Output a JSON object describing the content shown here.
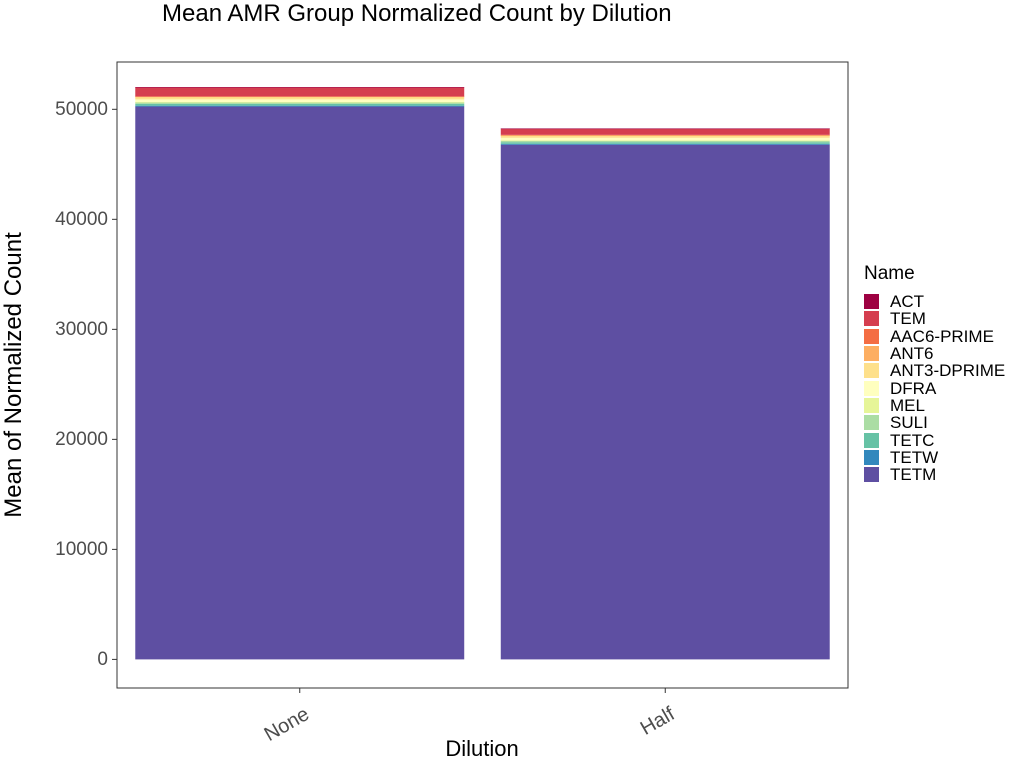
{
  "chart_data": {
    "type": "bar",
    "stacked": true,
    "title": "Mean AMR Group Normalized Count by Dilution",
    "xlabel": "Dilution",
    "ylabel": "Mean of Normalized Count",
    "categories": [
      "None",
      "Half"
    ],
    "ylim": [
      -2600,
      54300
    ],
    "yticks": [
      0,
      10000,
      20000,
      30000,
      40000,
      50000
    ],
    "grid": false,
    "legend": {
      "title": "Name",
      "placement": "right"
    },
    "series": [
      {
        "name": "ACT",
        "color": "#9E0142",
        "values": [
          20,
          20
        ]
      },
      {
        "name": "TEM",
        "color": "#D53E4F",
        "values": [
          820,
          560
        ]
      },
      {
        "name": "AAC6-PRIME",
        "color": "#F46D43",
        "values": [
          20,
          20
        ]
      },
      {
        "name": "ANT6",
        "color": "#FDAE61",
        "values": [
          20,
          20
        ]
      },
      {
        "name": "ANT3-DPRIME",
        "color": "#FEE08B",
        "values": [
          240,
          230
        ]
      },
      {
        "name": "DFRA",
        "color": "#FFFFBF",
        "values": [
          240,
          230
        ]
      },
      {
        "name": "MEL",
        "color": "#E6F598",
        "values": [
          20,
          20
        ]
      },
      {
        "name": "SULI",
        "color": "#ABDDA4",
        "values": [
          150,
          150
        ]
      },
      {
        "name": "TETC",
        "color": "#66C2A5",
        "values": [
          160,
          150
        ]
      },
      {
        "name": "TETW",
        "color": "#3288BD",
        "values": [
          80,
          80
        ]
      },
      {
        "name": "TETM",
        "color": "#5E4FA2",
        "values": [
          50250,
          46780
        ]
      }
    ]
  }
}
